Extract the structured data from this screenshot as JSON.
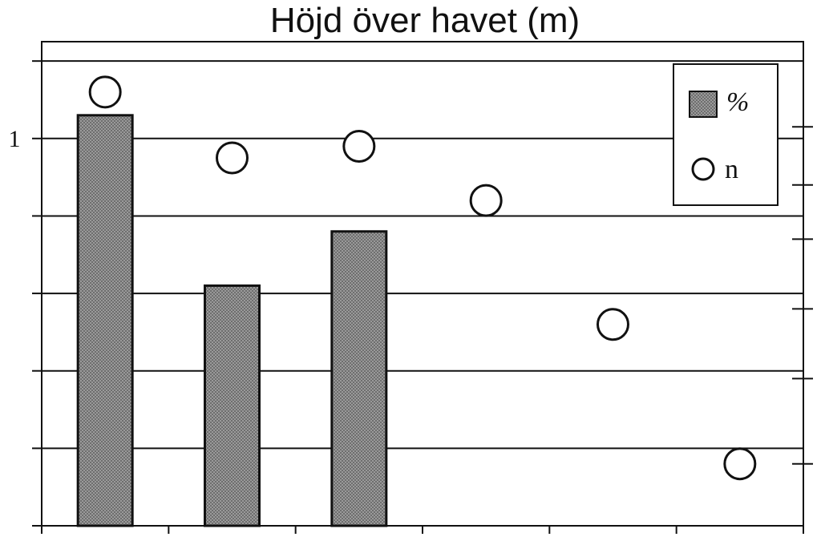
{
  "chart_data": {
    "type": "bar",
    "title": "Höjd över havet (m)",
    "xlabel": "",
    "ylabel": "",
    "categories": [
      "",
      "",
      "",
      "",
      "",
      ""
    ],
    "ylim": [
      0,
      1.25
    ],
    "yticks_left": [
      0,
      0.2,
      0.4,
      0.6,
      0.8,
      1.0,
      1.2
    ],
    "ytick_labels_left": [
      {
        "value": 1.0,
        "label": "1"
      }
    ],
    "grid": true,
    "legend_position": "top-right",
    "series": [
      {
        "name": "%",
        "kind": "bar",
        "color": "#8a8a8a",
        "values": [
          1.06,
          0.62,
          0.76,
          null,
          null,
          null
        ]
      },
      {
        "name": "n",
        "kind": "scatter",
        "marker": "open-circle",
        "values": [
          1.12,
          0.95,
          0.98,
          0.84,
          0.52,
          0.16
        ]
      }
    ]
  }
}
